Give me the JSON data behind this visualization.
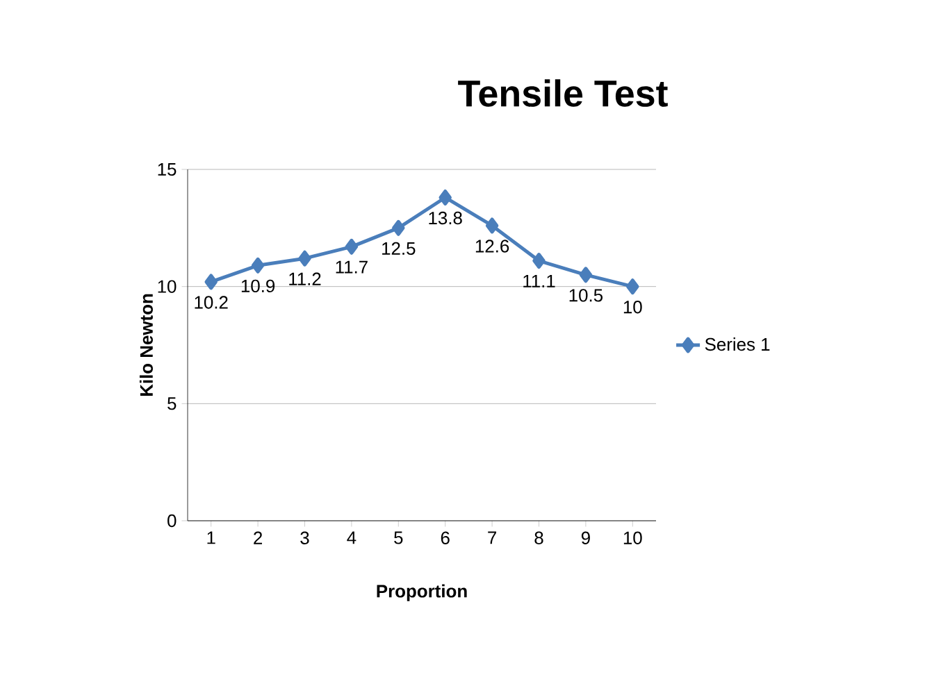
{
  "chart_data": {
    "type": "line",
    "title": "Tensile Test",
    "xlabel": "Proportion",
    "ylabel": "Kilo Newton",
    "categories": [
      "1",
      "2",
      "3",
      "4",
      "5",
      "6",
      "7",
      "8",
      "9",
      "10"
    ],
    "series": [
      {
        "name": "Series 1",
        "color": "#4a7ebb",
        "values": [
          10.2,
          10.9,
          11.2,
          11.7,
          12.5,
          13.8,
          12.6,
          11.1,
          10.5,
          10
        ]
      }
    ],
    "ylim": [
      0,
      15
    ],
    "yticks": [
      0,
      5,
      10,
      15
    ],
    "grid": "y",
    "legend": "right",
    "marker": "diamond",
    "data_labels": true
  }
}
